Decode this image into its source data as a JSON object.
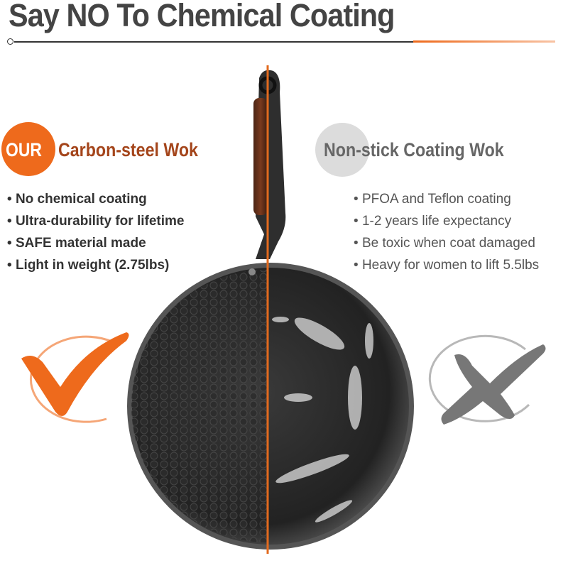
{
  "title": "Say NO To Chemical Coating",
  "left": {
    "badge": "OUR",
    "heading": "Carbon-steel Wok",
    "bullets": [
      "No chemical coating",
      "Ultra-durability for lifetime",
      "SAFE material made",
      "Light in weight (2.75lbs)"
    ],
    "icon": "check-mark-icon"
  },
  "right": {
    "heading": "Non-stick Coating Wok",
    "bullets": [
      "PFOA and Teflon coating",
      "1-2 years life expectancy",
      "Be toxic when coat damaged",
      "Heavy for women to lift 5.5lbs"
    ],
    "icon": "x-mark-icon"
  },
  "colors": {
    "accent": "#ee6a1c",
    "heading_left": "#a4451b",
    "gray": "#888888",
    "text": "#444444"
  }
}
